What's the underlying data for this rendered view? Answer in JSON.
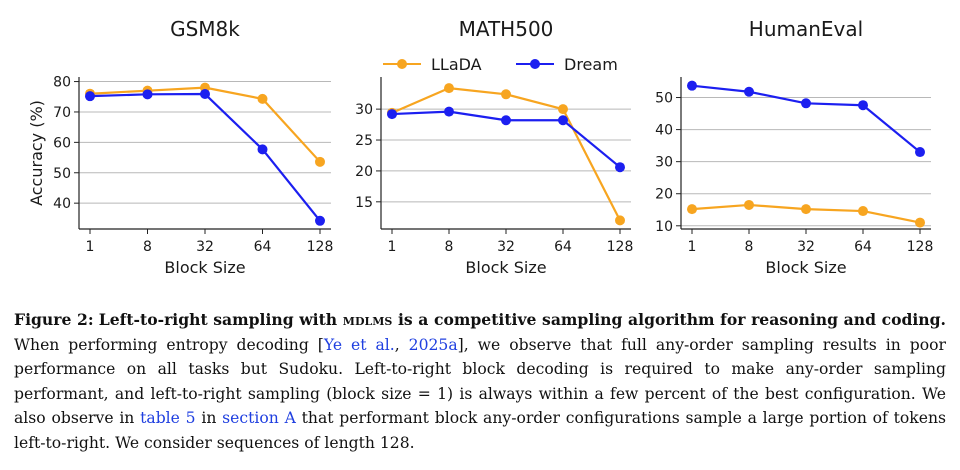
{
  "chart_data": [
    {
      "type": "line",
      "title": "GSM8k",
      "xlabel": "Block Size",
      "ylabel": "Accuracy (%)",
      "categories": [
        "1",
        "8",
        "32",
        "64",
        "128"
      ],
      "yticks": [
        40,
        50,
        60,
        70,
        80
      ],
      "ylim": [
        31.5,
        81.5
      ],
      "series": [
        {
          "name": "LLaDA",
          "color": "#f7a520",
          "values": [
            76.0,
            77.0,
            78.0,
            74.3,
            53.6
          ]
        },
        {
          "name": "Dream",
          "color": "#1c1ff0",
          "values": [
            75.2,
            75.8,
            75.9,
            57.7,
            34.2
          ]
        }
      ],
      "grid": "horizontal"
    },
    {
      "type": "line",
      "title": "MATH500",
      "xlabel": "Block Size",
      "ylabel": "",
      "categories": [
        "1",
        "8",
        "32",
        "64",
        "128"
      ],
      "yticks": [
        15,
        20,
        25,
        30
      ],
      "ylim": [
        10.6,
        35.2
      ],
      "series": [
        {
          "name": "LLaDA",
          "color": "#f7a520",
          "values": [
            29.4,
            33.4,
            32.4,
            30.0,
            12.0
          ]
        },
        {
          "name": "Dream",
          "color": "#1c1ff0",
          "values": [
            29.2,
            29.6,
            28.2,
            28.2,
            20.6
          ]
        }
      ],
      "grid": "horizontal",
      "legend": "top"
    },
    {
      "type": "line",
      "title": "HumanEval",
      "xlabel": "Block Size",
      "ylabel": "",
      "categories": [
        "1",
        "8",
        "32",
        "64",
        "128"
      ],
      "yticks": [
        10,
        20,
        30,
        40,
        50
      ],
      "ylim": [
        9.0,
        56.4
      ],
      "series": [
        {
          "name": "LLaDA",
          "color": "#f7a520",
          "values": [
            15.2,
            16.5,
            15.2,
            14.6,
            11.0
          ]
        },
        {
          "name": "Dream",
          "color": "#1c1ff0",
          "values": [
            53.7,
            51.8,
            48.2,
            47.6,
            33.0
          ]
        }
      ],
      "grid": "horizontal"
    }
  ],
  "legend": {
    "items": [
      "LLaDA",
      "Dream"
    ]
  },
  "caption": {
    "label": "Figure 2:",
    "bold_pre": "Left-to-right sampling with ",
    "smallcaps": "mdlms",
    "bold_post": " is a competitive sampling algorithm for reasoning and coding.",
    "text1": " When performing entropy decoding [",
    "cite_author": "Ye et al.",
    "cite_sep": ", ",
    "cite_year": "2025a",
    "text2": "], we observe that full any-order sampling results in poor performance on all tasks but Sudoku. Left-to-right block decoding is required to make any-order sampling performant, and left-to-right sampling (block size = 1) is always within a few percent of the best configuration. We also observe in ",
    "table_ref": "table 5",
    "text3": " in ",
    "section_ref": "section A",
    "text4": " that performant block any-order configurations sample a large portion of tokens left-to-right. We consider sequences of length 128."
  }
}
